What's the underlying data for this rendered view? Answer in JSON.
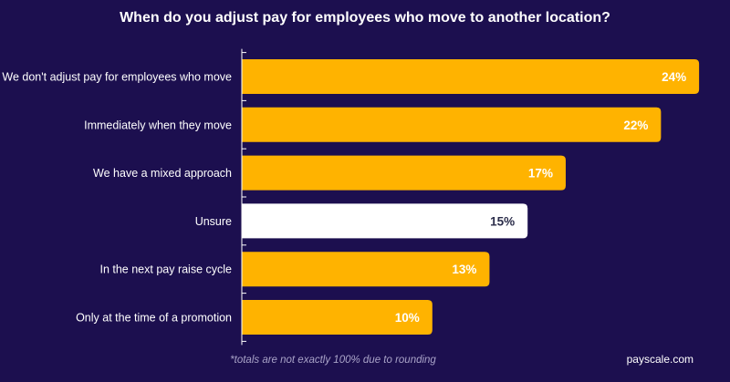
{
  "chart_data": {
    "type": "bar",
    "orientation": "horizontal",
    "title": "When do you adjust pay for employees who move to another location?",
    "categories": [
      "We don't adjust pay for employees who move",
      "Immediately when they move",
      "We have a mixed approach",
      "Unsure",
      "In the next pay raise cycle",
      "Only at the time of a promotion"
    ],
    "values": [
      24,
      22,
      17,
      15,
      13,
      10
    ],
    "value_labels": [
      "24%",
      "22%",
      "17%",
      "15%",
      "13%",
      "10%"
    ],
    "highlight_index": 3,
    "xlim": [
      0,
      25
    ],
    "xlabel": "",
    "ylabel": "",
    "grid": false
  },
  "footnote": "*totals are not exactly 100% due to rounding",
  "brand": "payscale.com",
  "colors": {
    "background": "#1c0f4f",
    "bar": "#ffb300",
    "bar_highlight": "#ffffff",
    "label_on_bar": "#ffffff",
    "label_on_highlight": "#2b2d4a",
    "axis": "#ffffff",
    "category_text": "#ffffff"
  }
}
